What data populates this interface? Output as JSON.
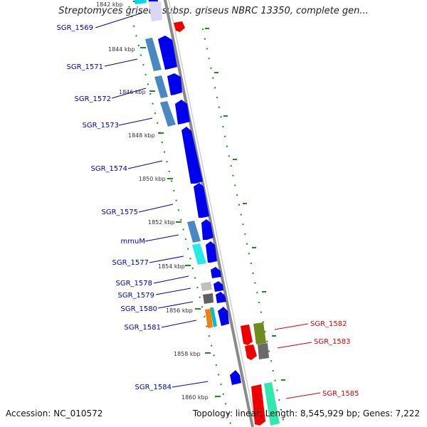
{
  "title": "Streptomyces griseus subsp. griseus NBRC 13350, complete gen...",
  "footer": {
    "accession": "Accession: NC_010572",
    "topology": "Topology: linear; Length: 8,545,929 bp; Genes: 7,222"
  },
  "colors": {
    "backbone": "#8a8a8a",
    "tick": "#1f8a1f",
    "forward_gene": "#0000ee",
    "reverse_gene": "#ee0000",
    "left_label": "#0000bb",
    "right_label": "#dd0000"
  },
  "kbp_labels": [
    "1842 kbp",
    "1844 kbp",
    "1846 kbp",
    "1848 kbp",
    "1850 kbp",
    "1852 kbp",
    "1854 kbp",
    "1856 kbp",
    "1858 kbp",
    "1860 kbp"
  ],
  "left_genes": [
    "SGR_1569",
    "SGR_1571",
    "SGR_1572",
    "SGR_1573",
    "SGR_1574",
    "SGR_1575",
    "mmuM",
    "SGR_1577",
    "SGR_1578",
    "SGR_1579",
    "SGR_1580",
    "SGR_1581",
    "SGR_1584"
  ],
  "right_genes": [
    "SGR_1582",
    "SGR_1583",
    "SGR_1585"
  ]
}
